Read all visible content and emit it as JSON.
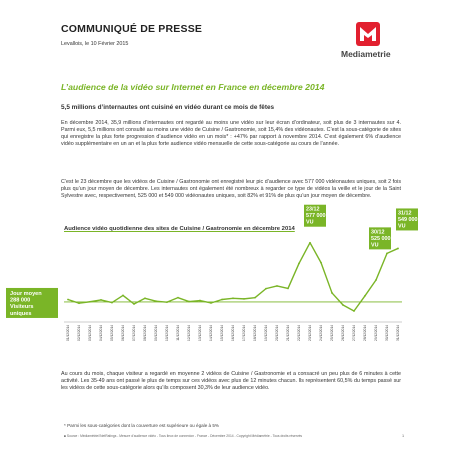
{
  "header": {
    "title": "COMMUNIQUÉ DE PRESSE",
    "date": "Levallois, le 10 Février 2015",
    "logo_text": "Mediametrie"
  },
  "main_title": "L’audience de la vidéo sur Internet en France en décembre 2014",
  "sub_title": "5,5 millions d’internautes ont cuisiné en vidéo durant ce mois de fêtes",
  "paragraphs": {
    "p1": "En décembre 2014, 35,9 millions d’internautes ont regardé au moins une vidéo sur leur écran d’ordinateur, soit plus de 3 internautes sur 4. Parmi eux, 5,5 millions ont consulté au moins une vidéo de Cuisine / Gastronomie, soit 15,4% des vidéonautes. C’est la sous-catégorie de sites qui enregistre la plus forte progression d’audience vidéo en un mois* : +47% par rapport à novembre 2014. C’est également 6% d’audience vidéo supplémentaire en un an et la plus forte audience vidéo mensuelle de cette sous-catégorie au cours de l’année.",
    "p2": "C’est le 23 décembre que les vidéos de Cuisine / Gastronomie ont enregistré leur pic d’audience avec 577 000 vidéonautes uniques, soit 2 fois plus qu’un jour moyen de décembre. Les internautes ont également été nombreux à regarder ce type de vidéos la veille et le jour de la Saint Sylvestre avec, respectivement, 525 000 et 549 000 vidéonautes uniques, soit 82% et 91% de plus qu’un jour moyen de décembre.",
    "p3": "Au cours du mois, chaque visiteur a regardé en moyenne 2 vidéos de Cuisine / Gastronomie et a consacré un peu plus de 6 minutes à cette activité. Les 35-49 ans ont passé le plus de temps sur ces vidéos avec plus de 12 minutes chacun. Ils représentent 60,5% du temps passé sur les vidéos de cette sous-catégorie alors qu’ils composent 30,3% de leur audience vidéo."
  },
  "chart_title": "Audience vidéo quotidienne des sites de Cuisine / Gastronomie en décembre 2014",
  "chart_data": {
    "type": "line",
    "title": "Audience vidéo quotidienne des sites de Cuisine / Gastronomie en décembre 2014",
    "x": [
      "01/12/2014",
      "02/12/2014",
      "03/12/2014",
      "04/12/2014",
      "05/12/2014",
      "06/12/2014",
      "07/12/2014",
      "08/12/2014",
      "09/12/2014",
      "10/12/2014",
      "11/12/2014",
      "12/12/2014",
      "13/12/2014",
      "14/12/2014",
      "15/12/2014",
      "16/12/2014",
      "17/12/2014",
      "18/12/2014",
      "19/12/2014",
      "20/12/2014",
      "21/12/2014",
      "22/12/2014",
      "23/12/2014",
      "24/12/2014",
      "25/12/2014",
      "26/12/2014",
      "27/12/2014",
      "28/12/2014",
      "29/12/2014",
      "30/12/2014",
      "31/12/2014"
    ],
    "y": [
      300000,
      282000,
      289000,
      298000,
      285000,
      320000,
      278000,
      306000,
      292000,
      287000,
      309000,
      290000,
      295000,
      283000,
      300000,
      306000,
      303000,
      309000,
      353000,
      366000,
      354000,
      476000,
      577000,
      480000,
      332000,
      273000,
      244000,
      318000,
      395000,
      525000,
      549000
    ],
    "average": 288000,
    "colors": {
      "line": "#7ab527",
      "average": "#7ab527",
      "labels": "#7ab527"
    },
    "average_label": [
      "Jour moyen",
      "288 000",
      "Visiteurs",
      "uniques"
    ],
    "callouts": [
      {
        "date": "23/12",
        "text": [
          "23/12",
          "577 000",
          "VU"
        ],
        "value": 577000
      },
      {
        "date": "30/12",
        "text": [
          "30/12",
          "525 000",
          "VU"
        ],
        "value": 525000
      },
      {
        "date": "31/12",
        "text": [
          "31/12",
          "549 000",
          "VU"
        ],
        "value": 549000
      }
    ],
    "grid": false,
    "legend": "none"
  },
  "footnote": "* Parmi les sous-catégories dont la couverture est supérieure ou égale à 5%",
  "source": "■ Source : Médiamétrie//NetRatings - Mesure d’audience vidéo - Tous lieux de connexion - France - Décembre 2014 - Copyright Médiamétrie - Tous droits réservés",
  "page_number": "1"
}
